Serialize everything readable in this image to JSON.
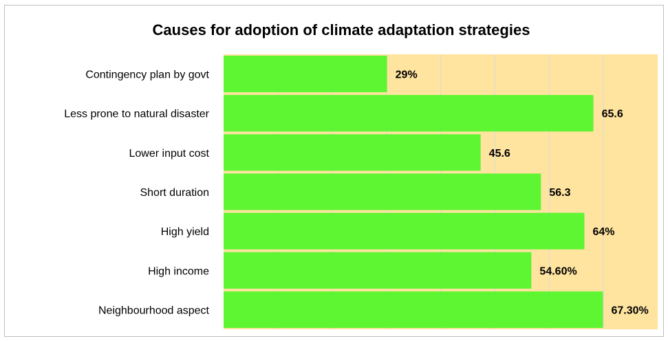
{
  "chart_data": {
    "type": "bar",
    "orientation": "horizontal",
    "title": "Causes for adoption of climate adaptation strategies",
    "categories": [
      "Contingency plan by govt",
      "Less prone to natural disaster",
      "Lower input cost",
      "Short duration",
      "High yield",
      "High income",
      "Neighbourhood aspect"
    ],
    "values": [
      29,
      65.6,
      45.6,
      56.3,
      64,
      54.6,
      67.3
    ],
    "data_labels": [
      "29%",
      "65.6",
      "45.6",
      "56.3",
      "64%",
      "54.60%",
      "67.30%"
    ],
    "xlim": [
      0,
      77
    ],
    "grid": true,
    "legend": "none",
    "colors": {
      "bar": "#5ef532",
      "plot_background": "#ffe4a0",
      "gridline": "#d9d9d9",
      "frame": "#bfbfbf"
    }
  }
}
